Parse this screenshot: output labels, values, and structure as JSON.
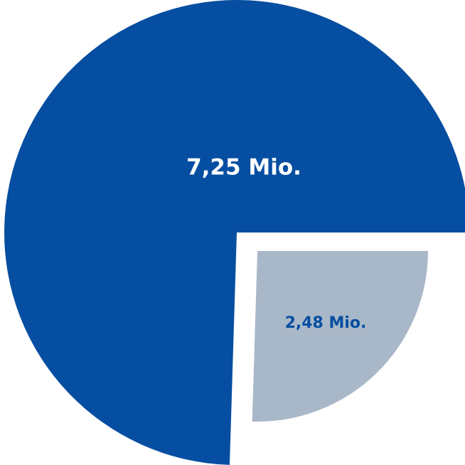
{
  "chart_data": {
    "type": "pie",
    "slices": [
      {
        "label": "7,25 Mio.",
        "value": 7.25,
        "color": "#054ea1",
        "label_color": "#ffffff"
      },
      {
        "label": "2,48 Mio.",
        "value": 2.48,
        "color": "#a9b8c9",
        "label_color": "#054ea1"
      }
    ],
    "exploded_slice": 1,
    "legend": "none"
  }
}
